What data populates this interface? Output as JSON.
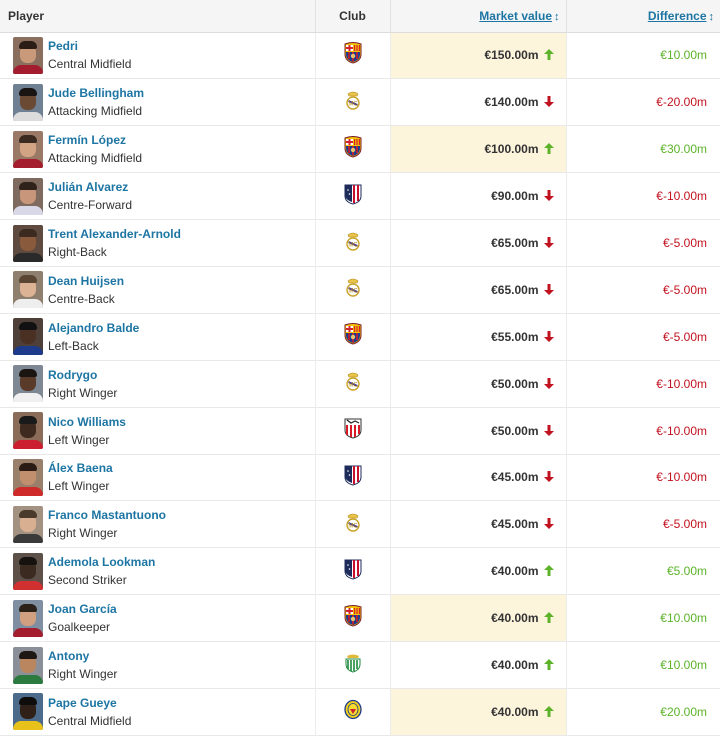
{
  "header": {
    "player": "Player",
    "club": "Club",
    "market_value": "Market value",
    "difference": "Difference",
    "sort_icon": "↕"
  },
  "colors": {
    "link": "#1d75a3",
    "up": "#5cb32a",
    "down": "#c1121f",
    "highlight": "#fdf4dc"
  },
  "rows": [
    {
      "name": "Pedri",
      "position": "Central Midfield",
      "club": "barcelona-crest-icon",
      "value": "€150.00m",
      "trend": "up",
      "highlight": true,
      "difference": "€10.00m"
    },
    {
      "name": "Jude Bellingham",
      "position": "Attacking Midfield",
      "club": "real-madrid-crest-icon",
      "value": "€140.00m",
      "trend": "down",
      "highlight": false,
      "difference": "€-20.00m"
    },
    {
      "name": "Fermín López",
      "position": "Attacking Midfield",
      "club": "barcelona-crest-icon",
      "value": "€100.00m",
      "trend": "up",
      "highlight": true,
      "difference": "€30.00m"
    },
    {
      "name": "Julián Alvarez",
      "position": "Centre-Forward",
      "club": "atletico-madrid-crest-icon",
      "value": "€90.00m",
      "trend": "down",
      "highlight": false,
      "difference": "€-10.00m"
    },
    {
      "name": "Trent Alexander-Arnold",
      "position": "Right-Back",
      "club": "real-madrid-crest-icon",
      "value": "€65.00m",
      "trend": "down",
      "highlight": false,
      "difference": "€-5.00m"
    },
    {
      "name": "Dean Huijsen",
      "position": "Centre-Back",
      "club": "real-madrid-crest-icon",
      "value": "€65.00m",
      "trend": "down",
      "highlight": false,
      "difference": "€-5.00m"
    },
    {
      "name": "Alejandro Balde",
      "position": "Left-Back",
      "club": "barcelona-crest-icon",
      "value": "€55.00m",
      "trend": "down",
      "highlight": false,
      "difference": "€-5.00m"
    },
    {
      "name": "Rodrygo",
      "position": "Right Winger",
      "club": "real-madrid-crest-icon",
      "value": "€50.00m",
      "trend": "down",
      "highlight": false,
      "difference": "€-10.00m"
    },
    {
      "name": "Nico Williams",
      "position": "Left Winger",
      "club": "athletic-bilbao-crest-icon",
      "value": "€50.00m",
      "trend": "down",
      "highlight": false,
      "difference": "€-10.00m"
    },
    {
      "name": "Álex Baena",
      "position": "Left Winger",
      "club": "atletico-madrid-crest-icon",
      "value": "€45.00m",
      "trend": "down",
      "highlight": false,
      "difference": "€-10.00m"
    },
    {
      "name": "Franco Mastantuono",
      "position": "Right Winger",
      "club": "real-madrid-crest-icon",
      "value": "€45.00m",
      "trend": "down",
      "highlight": false,
      "difference": "€-5.00m"
    },
    {
      "name": "Ademola Lookman",
      "position": "Second Striker",
      "club": "atletico-madrid-crest-icon",
      "value": "€40.00m",
      "trend": "up",
      "highlight": false,
      "difference": "€5.00m"
    },
    {
      "name": "Joan García",
      "position": "Goalkeeper",
      "club": "barcelona-crest-icon",
      "value": "€40.00m",
      "trend": "up",
      "highlight": true,
      "difference": "€10.00m"
    },
    {
      "name": "Antony",
      "position": "Right Winger",
      "club": "real-betis-crest-icon",
      "value": "€40.00m",
      "trend": "up",
      "highlight": false,
      "difference": "€10.00m"
    },
    {
      "name": "Pape Gueye",
      "position": "Central Midfield",
      "club": "villarreal-crest-icon",
      "value": "€40.00m",
      "trend": "up",
      "highlight": true,
      "difference": "€20.00m"
    }
  ]
}
